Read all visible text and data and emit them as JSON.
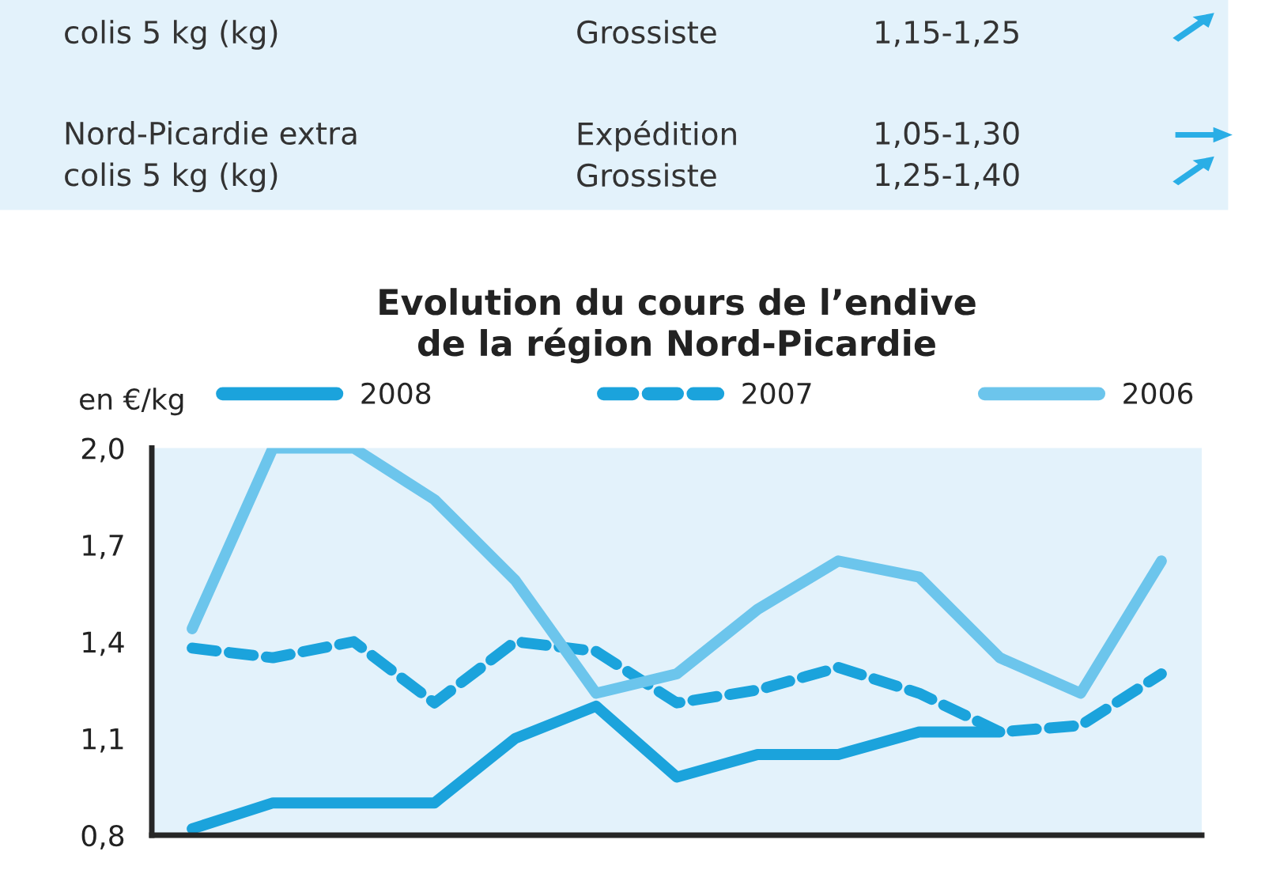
{
  "chart_data": {
    "type": "line",
    "title": "Evolution du cours de l’endive\nde la région Nord-Picardie",
    "ylabel": "en €/kg",
    "categories": [
      null,
      null,
      null,
      null,
      null,
      null,
      null,
      null,
      null,
      null,
      null,
      null,
      null
    ],
    "series": [
      {
        "name": "2008",
        "color": "#1ba3dc",
        "line_style": "solid",
        "values": [
          0.82,
          0.9,
          0.9,
          0.9,
          1.1,
          1.2,
          0.98,
          1.05,
          1.05,
          1.12,
          1.12,
          null,
          null
        ]
      },
      {
        "name": "2007",
        "color": "#1ba3dc",
        "line_style": "dashed",
        "values": [
          1.38,
          1.35,
          1.4,
          1.21,
          1.4,
          1.37,
          1.21,
          1.25,
          1.32,
          1.24,
          1.12,
          1.14,
          1.3
        ]
      },
      {
        "name": "2006",
        "color": "#6cc5ec",
        "line_style": "solid",
        "values": [
          1.44,
          2.0,
          2.0,
          1.84,
          1.59,
          1.24,
          1.3,
          1.5,
          1.65,
          1.6,
          1.35,
          1.24,
          1.65
        ]
      }
    ],
    "ylim": [
      0.8,
      2.0
    ],
    "yticks": [
      {
        "value": 0.8,
        "label": "0,8"
      },
      {
        "value": 1.1,
        "label": "1,1"
      },
      {
        "value": 1.4,
        "label": "1,4"
      },
      {
        "value": 1.7,
        "label": "1,7"
      },
      {
        "value": 2.0,
        "label": "2,0"
      }
    ],
    "legend": "top",
    "grid": false,
    "marker": "none",
    "annotations": [
      "colis 5 kg (kg)",
      "Grossiste",
      "1,15-1,25",
      "Nord-Picardie extra\ncolis 5 kg (kg)",
      "Expédition\nGrossiste",
      "1,05-1,30\n1,25-1,40"
    ]
  }
}
